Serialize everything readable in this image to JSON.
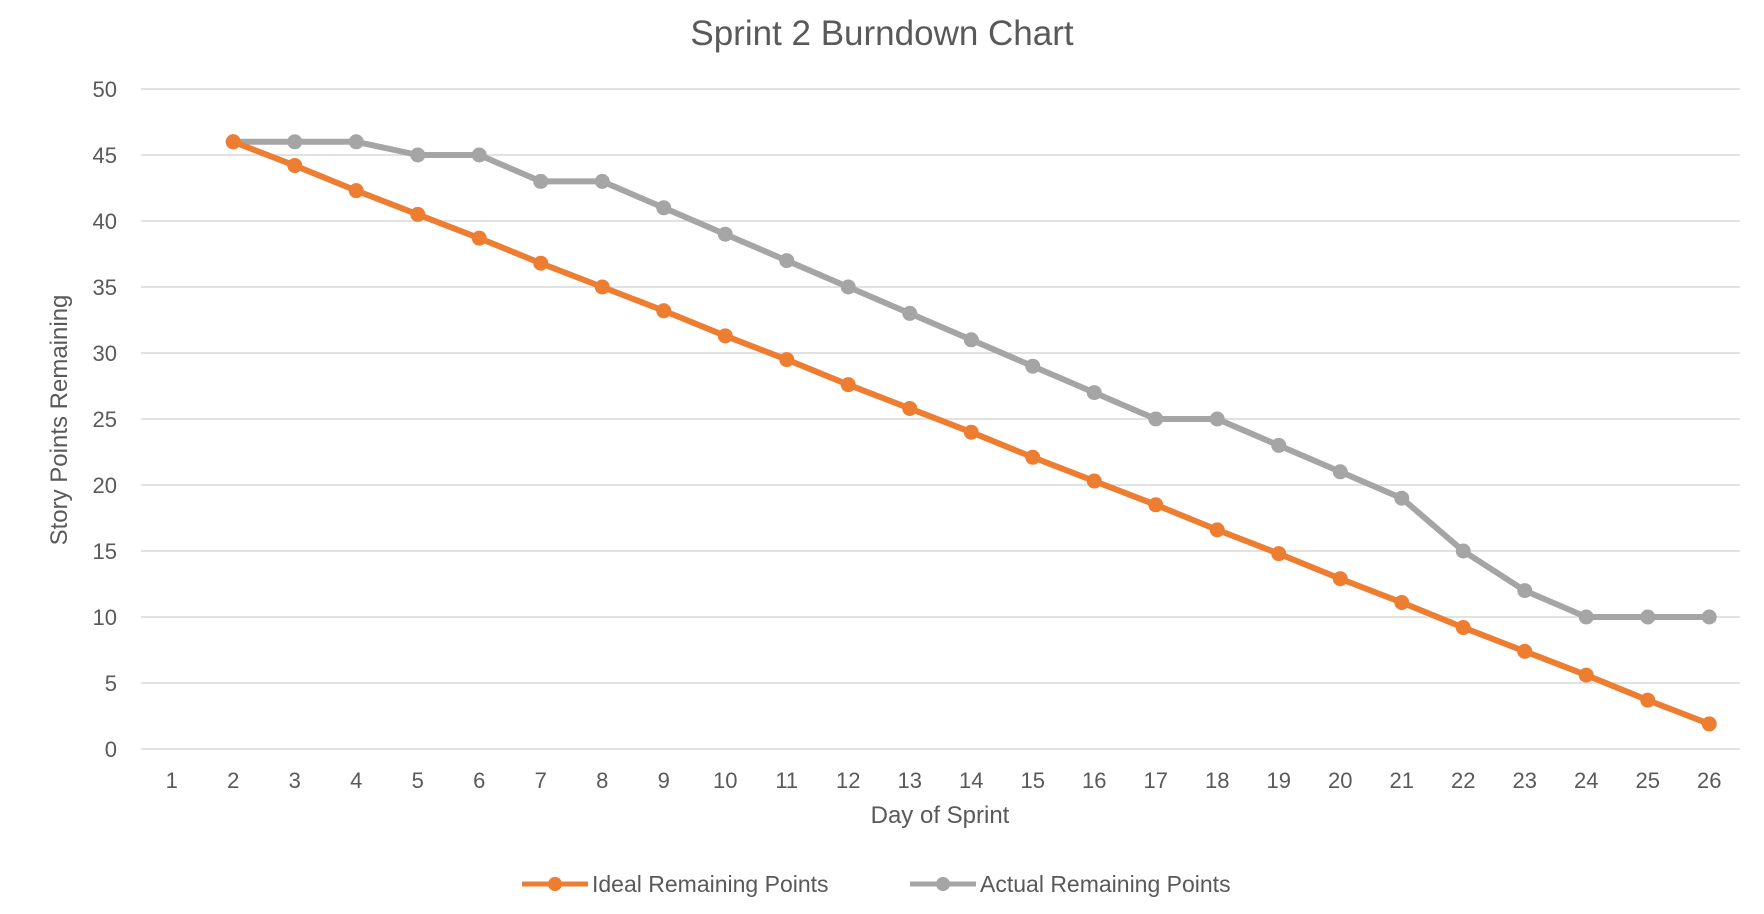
{
  "chart_data": {
    "type": "line",
    "title": "Sprint 2 Burndown Chart",
    "xlabel": "Day of Sprint",
    "ylabel": "Story Points Remaining",
    "categories": [
      "1",
      "2",
      "3",
      "4",
      "5",
      "6",
      "7",
      "8",
      "9",
      "10",
      "11",
      "12",
      "13",
      "14",
      "15",
      "16",
      "17",
      "18",
      "19",
      "20",
      "21",
      "22",
      "23",
      "24",
      "25",
      "26"
    ],
    "ylim": [
      0,
      50
    ],
    "yticks": [
      0,
      5,
      10,
      15,
      20,
      25,
      30,
      35,
      40,
      45,
      50
    ],
    "grid": true,
    "legend_position": "bottom",
    "series": [
      {
        "name": "Ideal Remaining Points",
        "color": "#ED7D31",
        "values": [
          null,
          46,
          44.2,
          42.3,
          40.5,
          38.7,
          36.8,
          35.0,
          33.2,
          31.3,
          29.5,
          27.6,
          25.8,
          24.0,
          22.1,
          20.3,
          18.5,
          16.6,
          14.8,
          12.9,
          11.1,
          9.2,
          7.4,
          5.6,
          3.7,
          1.9
        ]
      },
      {
        "name": "Actual Remaining Points",
        "color": "#A5A5A5",
        "values": [
          null,
          46,
          46,
          46,
          45,
          45,
          43,
          43,
          41,
          39,
          37,
          35,
          33,
          31,
          29,
          27,
          25,
          25,
          23,
          21,
          19,
          15,
          12,
          10,
          10,
          10
        ]
      }
    ]
  }
}
